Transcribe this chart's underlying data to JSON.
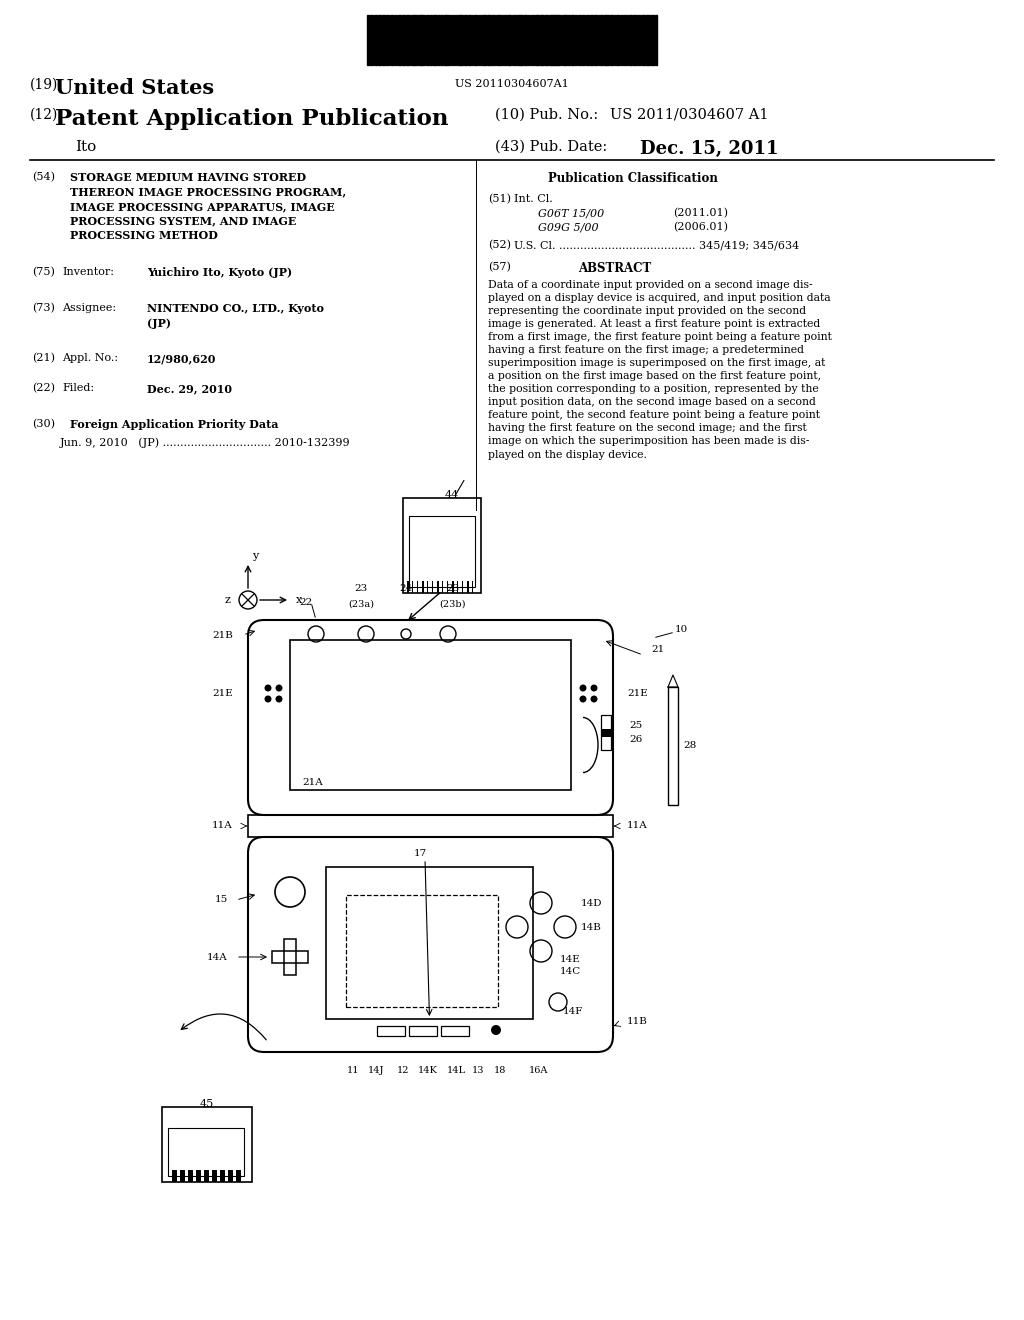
{
  "bg_color": "#ffffff",
  "barcode_text": "US 20110304607A1",
  "line1_19": "(19)",
  "line1_us": "United States",
  "line2_12": "(12)",
  "line2_pub": "Patent Application Publication",
  "line2_10": "(10) Pub. No.:",
  "line2_pubno": "US 2011/0304607 A1",
  "line3_ito": "Ito",
  "line3_43": "(43) Pub. Date:",
  "line3_date": "Dec. 15, 2011",
  "title_num": "(54)",
  "title_text": "STORAGE MEDIUM HAVING STORED\nTHEREON IMAGE PROCESSING PROGRAM,\nIMAGE PROCESSING APPARATUS, IMAGE\nPROCESSING SYSTEM, AND IMAGE\nPROCESSING METHOD",
  "pub_class_header": "Publication Classification",
  "int_cl_label": "(51)",
  "int_cl_sub": "Int. Cl.",
  "int_cl_1": "G06T 15/00",
  "int_cl_1_date": "(2011.01)",
  "int_cl_2": "G09G 5/00",
  "int_cl_2_date": "(2006.01)",
  "us_cl_label": "(52)",
  "us_cl_text": "U.S. Cl. ....................................... 345/419; 345/634",
  "abstract_num": "(57)",
  "abstract_header": "ABSTRACT",
  "abstract_text": "Data of a coordinate input provided on a second image dis-\nplayed on a display device is acquired, and input position data\nrepresenting the coordinate input provided on the second\nimage is generated. At least a first feature point is extracted\nfrom a first image, the first feature point being a feature point\nhaving a first feature on the first image; a predetermined\nsuperimposition image is superimposed on the first image, at\na position on the first image based on the first feature point,\nthe position corresponding to a position, represented by the\ninput position data, on the second image based on a second\nfeature point, the second feature point being a feature point\nhaving the first feature on the second image; and the first\nimage on which the superimposition has been made is dis-\nplayed on the display device.",
  "inventor_label": "(75)",
  "inventor_sub": "Inventor:",
  "inventor_text": "Yuichiro Ito, Kyoto (JP)",
  "assignee_label": "(73)",
  "assignee_sub": "Assignee:",
  "assignee_text": "NINTENDO CO., LTD., Kyoto\n(JP)",
  "appl_label": "(21)",
  "appl_sub": "Appl. No.:",
  "appl_text": "12/980,620",
  "filed_label": "(22)",
  "filed_sub": "Filed:",
  "filed_text": "Dec. 29, 2010",
  "foreign_header": "(30)",
  "foreign_sub": "Foreign Application Priority Data",
  "foreign_text": "Jun. 9, 2010   (JP) ............................... 2010-132399"
}
